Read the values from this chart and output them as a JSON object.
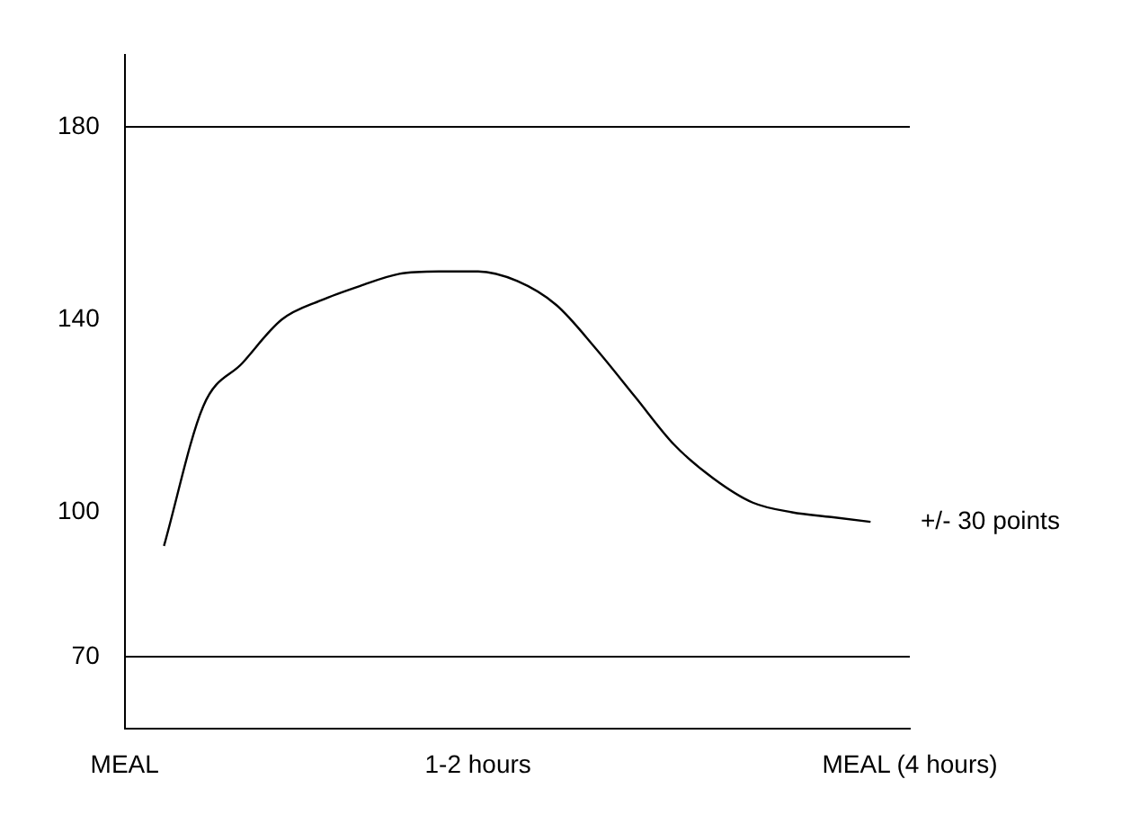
{
  "chart_data": {
    "type": "line",
    "categories": [
      "MEAL",
      null,
      null,
      null,
      null,
      null,
      null,
      null,
      null,
      "1-2 hours",
      null,
      null,
      null,
      null,
      null,
      null,
      null,
      null,
      null,
      null,
      "MEAL (4 hours)"
    ],
    "series": [
      {
        "color": "#000000",
        "values": [
          null,
          93,
          122,
          131,
          140,
          144,
          147,
          149.5,
          150,
          150,
          148,
          143,
          134,
          124,
          114,
          107,
          102,
          100,
          99,
          98,
          null
        ]
      }
    ],
    "ylim": [
      55,
      195
    ],
    "yticks": [
      70,
      100,
      140,
      180
    ],
    "ref_lines": [
      {
        "axis": "y",
        "value": 180,
        "color": "#000000"
      },
      {
        "axis": "y",
        "value": 70,
        "color": "#000000"
      }
    ],
    "annotations": [
      "+/- 30 points"
    ],
    "grid": false,
    "legend": false,
    "marker": "none",
    "line_style": "solid"
  }
}
